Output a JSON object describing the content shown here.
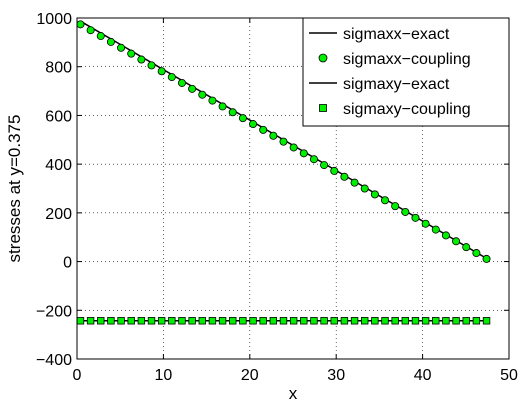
{
  "chart_data": {
    "type": "line",
    "title": "",
    "xlabel": "x",
    "ylabel": "stresses at y=0.375",
    "xlim": [
      0,
      50
    ],
    "ylim": [
      -400,
      1000
    ],
    "xticks": [
      "0",
      "10",
      "20",
      "30",
      "40",
      "50"
    ],
    "yticks": [
      "−400",
      "−200",
      "0",
      "200",
      "400",
      "600",
      "800",
      "1000"
    ],
    "grid": "dotted",
    "legend_position": "top-right",
    "colors": {
      "marker_fill": "#00ee00",
      "line": "#000000"
    },
    "series": [
      {
        "name": "sigmaxx−exact",
        "kind": "line",
        "x": [
          0.4,
          47.4
        ],
        "y": [
          987,
          13
        ]
      },
      {
        "name": "sigmaxx−coupling",
        "kind": "marker",
        "marker": "circle",
        "x": [
          0.4,
          47.4
        ],
        "y": [
          974,
          11
        ],
        "count": 41
      },
      {
        "name": "sigmaxy−exact",
        "kind": "line",
        "x": [
          0.4,
          47.4
        ],
        "y": [
          -243,
          -243
        ]
      },
      {
        "name": "sigmaxy−coupling",
        "kind": "marker",
        "marker": "square",
        "x": [
          0.4,
          47.4
        ],
        "y": [
          -243,
          -243
        ],
        "count": 41
      }
    ]
  }
}
